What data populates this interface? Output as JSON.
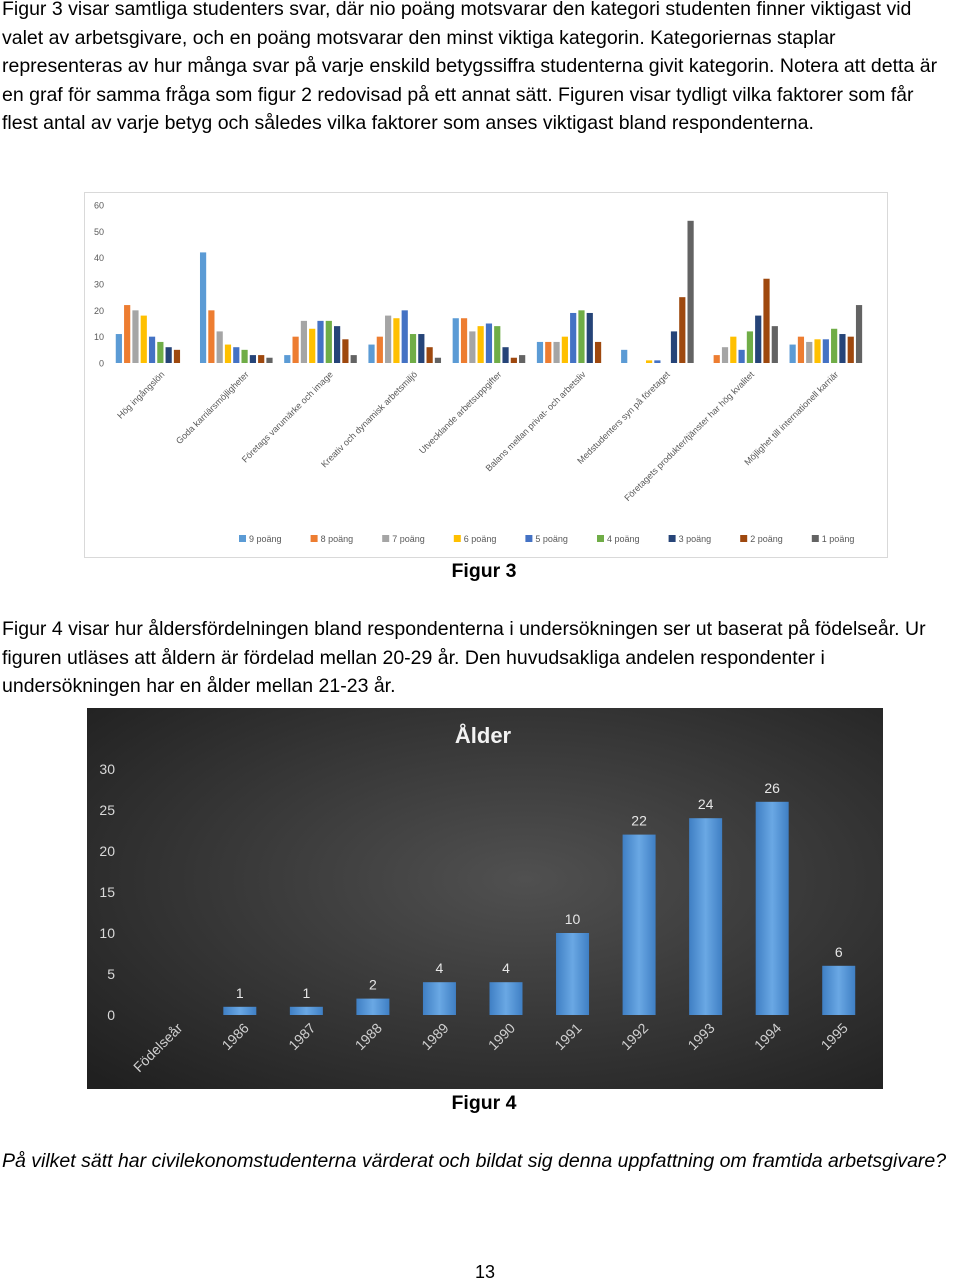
{
  "text": {
    "paragraph1": "Figur 3 visar samtliga studenters svar, där nio poäng motsvarar den kategori studenten finner viktigast vid valet av arbetsgivare, och en poäng motsvarar den minst viktiga kategorin. Kategoriernas staplar representeras av hur många svar på varje enskild betygssiffra studenterna givit kategorin. Notera att detta är en graf för samma fråga som figur 2 redovisad på ett annat sätt. Figuren visar tydligt vilka faktorer som får flest antal av varje betyg och således vilka faktorer som anses viktigast bland respondenterna.",
    "figure3_caption": "Figur 3",
    "paragraph2": "Figur 4 visar hur åldersfördelningen bland respondenterna i undersökningen ser ut baserat på födelseår. Ur figuren utläses att åldern är fördelad mellan 20-29 år. Den huvudsakliga andelen respondenter i undersökningen har en ålder mellan 21-23 år.",
    "figure4_caption": "Figur 4",
    "paragraph3": "På vilket sätt har civilekonomstudenterna värderat och bildat sig denna uppfattning om framtida arbetsgivare?",
    "page_number": "13"
  },
  "chart_data": [
    {
      "type": "bar",
      "title": "",
      "ylim": [
        0,
        60
      ],
      "yticks": [
        0,
        10,
        20,
        30,
        40,
        50,
        60
      ],
      "grid": false,
      "legend_position": "bottom",
      "categories": [
        "Hög ingångslön",
        "Goda karriärsmöjligheter",
        "Företags varumärke och image",
        "Kreativ och dynamisk arbetsmiljö",
        "Utvecklande arbetsuppgifter",
        "Balans mellan privat- och arbetsliv",
        "Medstudenters syn på företaget",
        "Företagets produkter/tjänster har hög kvalitet",
        "Möjlighet till internationell karriär"
      ],
      "series": [
        {
          "name": "9 poäng",
          "color": "#5b9bd5",
          "values": [
            11,
            42,
            3,
            7,
            17,
            8,
            5,
            0,
            7
          ]
        },
        {
          "name": "8 poäng",
          "color": "#ed7d31",
          "values": [
            22,
            20,
            10,
            10,
            17,
            8,
            0,
            3,
            10
          ]
        },
        {
          "name": "7 poäng",
          "color": "#a5a5a5",
          "values": [
            20,
            12,
            16,
            18,
            12,
            8,
            0,
            6,
            8
          ]
        },
        {
          "name": "6 poäng",
          "color": "#ffc000",
          "values": [
            18,
            7,
            13,
            17,
            14,
            10,
            1,
            10,
            9
          ]
        },
        {
          "name": "5 poäng",
          "color": "#4472c4",
          "values": [
            10,
            6,
            16,
            20,
            15,
            19,
            1,
            5,
            9
          ]
        },
        {
          "name": "4 poäng",
          "color": "#70ad47",
          "values": [
            8,
            5,
            16,
            11,
            14,
            20,
            0,
            12,
            13
          ]
        },
        {
          "name": "3 poäng",
          "color": "#264478",
          "values": [
            6,
            3,
            14,
            11,
            6,
            19,
            12,
            18,
            11
          ]
        },
        {
          "name": "2 poäng",
          "color": "#9e480e",
          "values": [
            5,
            3,
            9,
            6,
            2,
            8,
            25,
            32,
            10
          ]
        },
        {
          "name": "1 poäng",
          "color": "#636363",
          "values": [
            0,
            2,
            3,
            2,
            3,
            0,
            54,
            14,
            22
          ]
        }
      ]
    },
    {
      "type": "bar",
      "title": "Ålder",
      "ylim": [
        0,
        30
      ],
      "yticks": [
        0,
        5,
        10,
        15,
        20,
        25,
        30
      ],
      "grid": false,
      "background": "#3a3a3a",
      "bar_color": "#5b9bd5",
      "categories": [
        "Födelseår",
        "1986",
        "1987",
        "1988",
        "1989",
        "1990",
        "1991",
        "1992",
        "1993",
        "1994",
        "1995"
      ],
      "values": [
        null,
        1,
        1,
        2,
        4,
        4,
        10,
        22,
        24,
        26,
        6
      ]
    }
  ]
}
